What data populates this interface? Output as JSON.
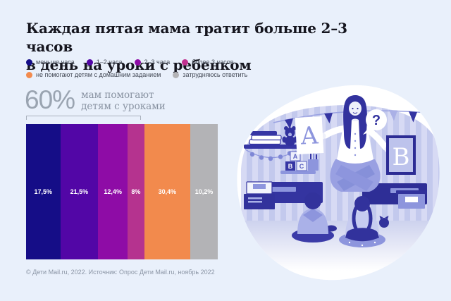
{
  "page": {
    "background": "#e9f0fb"
  },
  "header": {
    "title_line1": "Каждая пятая мама тратит больше 2–3 часов",
    "title_line2": "в день на уроки с ребенком"
  },
  "legend": {
    "rows": [
      [
        {
          "label": "меньше часа",
          "color": "#150d87"
        },
        {
          "label": "1–2 часа",
          "color": "#5206a6"
        },
        {
          "label": "2–3 часа",
          "color": "#8e0ca6"
        },
        {
          "label": "более 3 часов",
          "color": "#c2308f"
        }
      ],
      [
        {
          "label": "не помогают детям с домашним заданием",
          "color": "#f28a4d"
        },
        {
          "label": "затрудняюсь ответить",
          "color": "#b3b3b6"
        }
      ]
    ]
  },
  "stat": {
    "value": "60%",
    "label_line1": "мам помогают",
    "label_line2": "детям с уроками"
  },
  "chart_data": {
    "type": "bar",
    "subtype": "horizontal-stacked-100",
    "title": "Каждая пятая мама тратит больше 2–3 часов в день на уроки с ребенком",
    "categories": [
      "меньше часа",
      "1–2 часа",
      "2–3 часа",
      "более 3 часов",
      "не помогают детям с домашним заданием",
      "затрудняюсь ответить"
    ],
    "values": [
      17.5,
      21.5,
      12.4,
      8,
      30.4,
      10.2
    ],
    "labels": [
      "17,5%",
      "21,5%",
      "12,4%",
      "8%",
      "30,4%",
      "10,2%"
    ],
    "colors": [
      "#150d87",
      "#5206a6",
      "#8e0ca6",
      "#b5338f",
      "#f28a4d",
      "#b3b3b6"
    ],
    "annotation": {
      "value": "60%",
      "text": "мам помогают детям с уроками",
      "span_percent": 60
    },
    "legend_position": "top",
    "grid": false
  },
  "footer": {
    "text": "© Дети Mail.ru, 2022. Источник: Опрос Дети Mail.ru, ноябрь 2022"
  },
  "illustration": {
    "description": "mom showing letter cards to two children sitting on cushions",
    "card_a": "A",
    "card_b": "B",
    "bubble": "?",
    "block_a": "A",
    "block_b": "B",
    "block_c": "C"
  }
}
